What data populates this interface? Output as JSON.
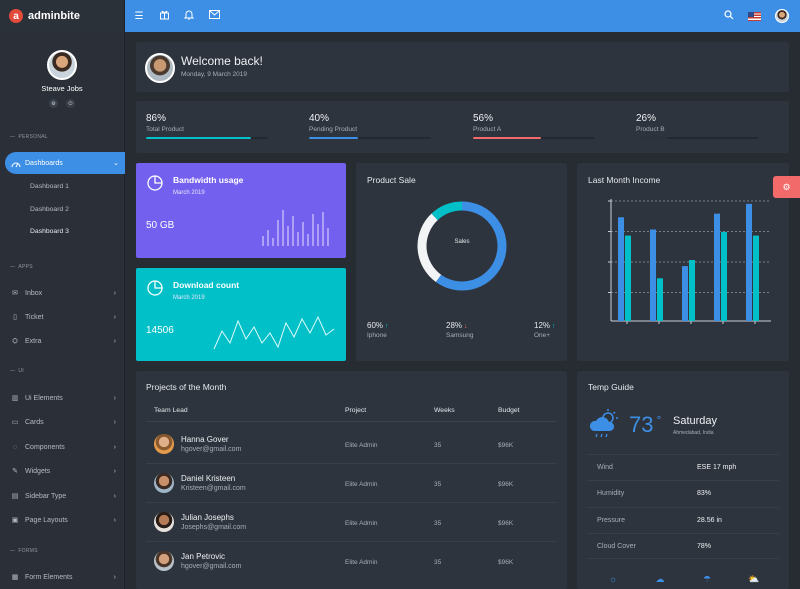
{
  "brand": {
    "name": "adminbite",
    "logo_letter": "a"
  },
  "profile": {
    "name": "Steave Jobs"
  },
  "sidebar": {
    "sections": [
      {
        "label": "PERSONAL"
      },
      {
        "label": "APPS"
      },
      {
        "label": "UI"
      },
      {
        "label": "FORMS"
      }
    ],
    "active": {
      "label": "Dashboards",
      "icon": "dashboard-icon"
    },
    "subitems": [
      {
        "label": "Dashboard 1"
      },
      {
        "label": "Dashboard 2"
      },
      {
        "label": "Dashboard 3"
      }
    ],
    "apps": [
      {
        "label": "Inbox",
        "icon": "inbox-icon"
      },
      {
        "label": "Ticket",
        "icon": "ticket-icon"
      },
      {
        "label": "Extra",
        "icon": "extra-icon"
      }
    ],
    "ui": [
      {
        "label": "Ui Elements",
        "icon": "ui-elements-icon"
      },
      {
        "label": "Cards",
        "icon": "cards-icon"
      },
      {
        "label": "Components",
        "icon": "components-icon"
      },
      {
        "label": "Widgets",
        "icon": "widgets-icon"
      },
      {
        "label": "Sidebar Type",
        "icon": "sidebar-type-icon"
      },
      {
        "label": "Page Layouts",
        "icon": "page-layouts-icon"
      }
    ],
    "forms": [
      {
        "label": "Form Elements",
        "icon": "form-elements-icon"
      }
    ]
  },
  "welcome": {
    "title": "Welcome back!",
    "date": "Monday, 9 March 2019"
  },
  "stats": [
    {
      "value": "86%",
      "label": "Total Product",
      "fill": 0.86,
      "color": "#01c0c8"
    },
    {
      "value": "40%",
      "label": "Pending Product",
      "fill": 0.4,
      "color": "#3d8fe6"
    },
    {
      "value": "56%",
      "label": "Product A",
      "fill": 0.56,
      "color": "#f36a6a"
    },
    {
      "value": "26%",
      "label": "Product B",
      "fill": 0.26,
      "color": "#2c323b"
    }
  ],
  "bandwidth": {
    "title": "Bandwidth usage",
    "subtitle": "March 2019",
    "value": "50 GB"
  },
  "download": {
    "title": "Download count",
    "subtitle": "March 2019",
    "value": "14506"
  },
  "product_sale": {
    "title": "Product Sale",
    "center_label": "Sales",
    "items": [
      {
        "value": "60%",
        "direction": "up",
        "label": "Iphone"
      },
      {
        "value": "28%",
        "direction": "down",
        "label": "Samsung"
      },
      {
        "value": "12%",
        "direction": "up",
        "label": "One+"
      }
    ],
    "colors": {
      "Iphone": "#3d8fe6",
      "Samsung": "#f3f4f6",
      "One+": "#01c0c8"
    }
  },
  "income": {
    "title": "Last Month Income"
  },
  "projects": {
    "title": "Projects of the Month",
    "columns": [
      "Team Lead",
      "Project",
      "Weeks",
      "Budget"
    ],
    "rows": [
      {
        "name": "Hanna Gover",
        "email": "hgover@gmail.com",
        "project": "Elite Admin",
        "weeks": "35",
        "budget": "$96K"
      },
      {
        "name": "Daniel Kristeen",
        "email": "Kristeen@gmail.com",
        "project": "Elite Admin",
        "weeks": "35",
        "budget": "$96K"
      },
      {
        "name": "Julian Josephs",
        "email": "Josephs@gmail.com",
        "project": "Elite Admin",
        "weeks": "35",
        "budget": "$96K"
      },
      {
        "name": "Jan Petrovic",
        "email": "hgover@gmail.com",
        "project": "Elite Admin",
        "weeks": "35",
        "budget": "$96K"
      }
    ]
  },
  "temp": {
    "title": "Temp Guide",
    "temperature": "73",
    "degree_symbol": "°",
    "day": "Saturday",
    "location": "Ahmedabad, India",
    "rows": [
      {
        "label": "Wind",
        "value": "ESE 17 mph"
      },
      {
        "label": "Humidity",
        "value": "83%"
      },
      {
        "label": "Pressure",
        "value": "28.56 in"
      },
      {
        "label": "Cloud Cover",
        "value": "78%"
      }
    ]
  },
  "chart_data": [
    {
      "type": "pie",
      "categories": [
        "Iphone",
        "Samsung",
        "One+"
      ],
      "values": [
        60,
        28,
        12
      ]
    },
    {
      "type": "bar",
      "categories": [
        "1",
        "2",
        "3",
        "4",
        "5"
      ],
      "series": [
        {
          "values": [
            8.5,
            7.5,
            4.5,
            8.8,
            9.6
          ]
        },
        {
          "values": [
            7.0,
            3.5,
            5.0,
            7.3,
            7.0
          ]
        }
      ],
      "ylim": [
        0,
        10
      ],
      "colors": [
        "#3d8fe6",
        "#01c0c8"
      ]
    }
  ]
}
